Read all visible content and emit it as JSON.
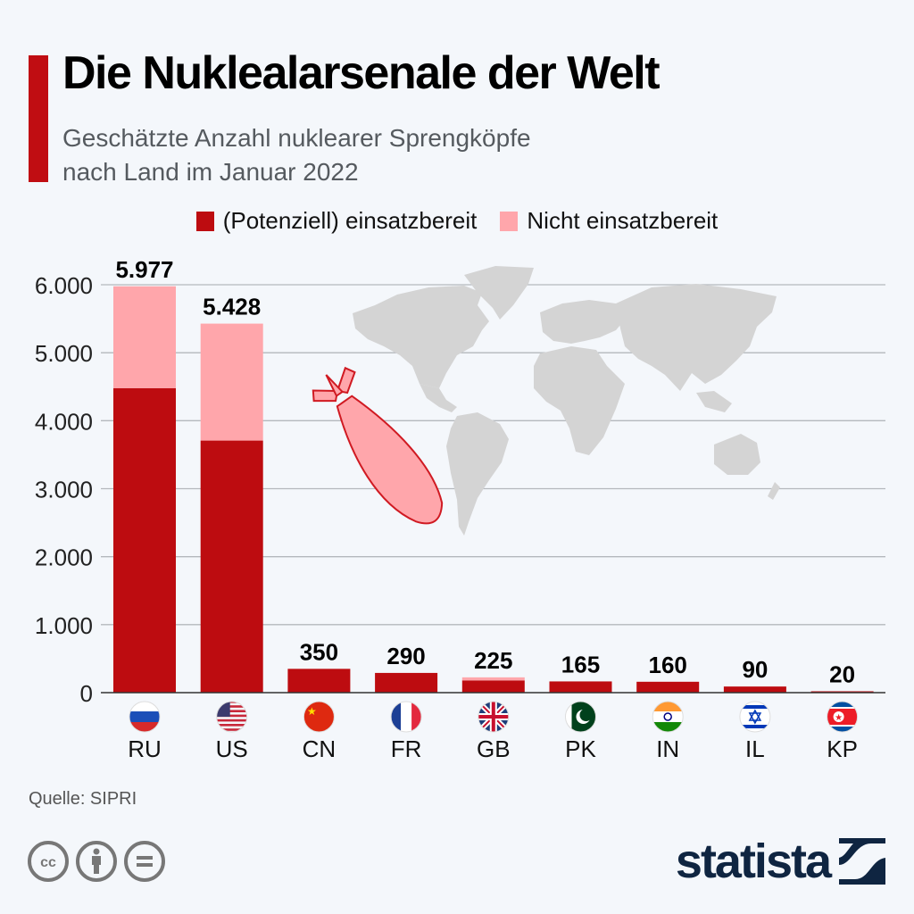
{
  "header": {
    "title": "Die Nuklealarsenale der Welt",
    "subtitle_line1": "Geschätzte Anzahl nuklearer Sprengköpfe",
    "subtitle_line2": "nach Land im Januar 2022"
  },
  "colors": {
    "accent": "#c00d12",
    "deployed": "#bd0c10",
    "not_deployed": "#ffa6ab",
    "brand": "#0f2541"
  },
  "chart_data": {
    "type": "bar",
    "stacked": true,
    "title": "Die Nuklearararsenale der Welt",
    "subtitle": "Geschätzte Anzahl nuklearer Sprengköpfe nach Land im Januar 2022",
    "xlabel": "",
    "ylabel": "",
    "ylim": [
      0,
      6000
    ],
    "yticks": [
      0,
      1000,
      2000,
      3000,
      4000,
      5000,
      6000
    ],
    "ytick_labels": [
      "0",
      "1.000",
      "2.000",
      "3.000",
      "4.000",
      "5.000",
      "6.000"
    ],
    "grid": true,
    "legend_position": "top-center",
    "categories": [
      "RU",
      "US",
      "CN",
      "FR",
      "GB",
      "PK",
      "IN",
      "IL",
      "KP"
    ],
    "flags": [
      "russia-flag",
      "usa-flag",
      "china-flag",
      "france-flag",
      "uk-flag",
      "pakistan-flag",
      "india-flag",
      "israel-flag",
      "north-korea-flag"
    ],
    "series": [
      {
        "name": "(Potenziell) einsatzbereit",
        "values": [
          4477,
          3708,
          350,
          290,
          180,
          165,
          160,
          90,
          20
        ]
      },
      {
        "name": "Nicht einsatzbereit",
        "values": [
          1500,
          1720,
          0,
          0,
          45,
          0,
          0,
          0,
          0
        ]
      }
    ],
    "totals": [
      5977,
      5428,
      350,
      290,
      225,
      165,
      160,
      90,
      20
    ],
    "total_labels": [
      "5.977",
      "5.428",
      "350",
      "290",
      "225",
      "165",
      "160",
      "90",
      "20"
    ]
  },
  "legend": {
    "items": [
      {
        "label": "(Potenziell) einsatzbereit"
      },
      {
        "label": "Nicht einsatzbereit"
      }
    ]
  },
  "footer": {
    "source": "Quelle: SIPRI",
    "license_icons": [
      "creative-commons-icon",
      "attribution-icon",
      "no-derivatives-icon"
    ],
    "brand": "statista"
  }
}
